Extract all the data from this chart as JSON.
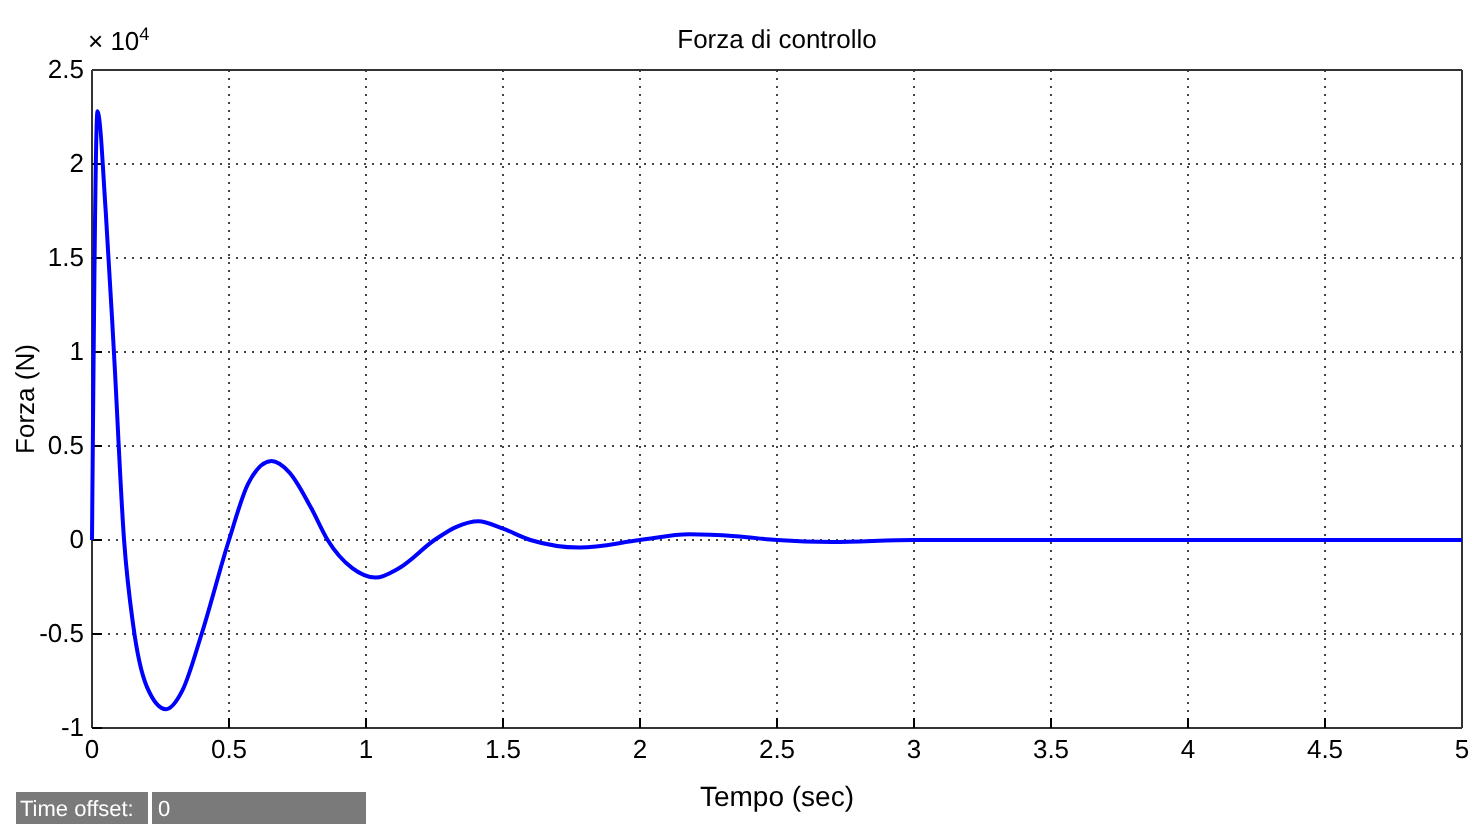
{
  "chart_data": {
    "type": "line",
    "title": "Forza di controllo",
    "xlabel": "Tempo (sec)",
    "ylabel": "Forza (N)",
    "annotations": [
      "× 10$^{4}$",
      "Time offset:",
      "0"
    ],
    "series": [
      {
        "color": "#0000ff",
        "x": [
          0,
          0.02,
          0.05,
          0.08,
          0.117,
          0.15,
          0.2,
          0.27,
          0.33,
          0.4,
          0.5,
          0.57,
          0.655,
          0.72,
          0.8,
          0.86,
          0.95,
          1.035,
          1.12,
          1.25,
          1.33,
          1.41,
          1.5,
          1.6,
          1.78,
          2.0,
          2.18,
          2.35,
          2.5,
          2.7,
          3.0,
          3.5,
          4,
          5
        ],
        "values": [
          0,
          2.28,
          1.75,
          1.0,
          0,
          -0.45,
          -0.78,
          -0.9,
          -0.8,
          -0.5,
          0,
          0.3,
          0.42,
          0.36,
          0.17,
          0,
          -0.15,
          -0.2,
          -0.15,
          0,
          0.07,
          0.1,
          0.06,
          0,
          -0.04,
          0,
          0.03,
          0.02,
          0,
          -0.01,
          0,
          0,
          0,
          0
        ]
      }
    ],
    "xlim": [
      0,
      5
    ],
    "xticks": [
      0,
      0.5,
      1,
      1.5,
      2,
      2.5,
      3,
      3.5,
      4,
      4.5,
      5
    ],
    "ylim": [
      -1,
      2.5
    ],
    "yticks": [
      -1,
      -0.5,
      0,
      0.5,
      1,
      1.5,
      2,
      2.5
    ],
    "grid": true,
    "line_style": "solid",
    "marker": "none"
  }
}
